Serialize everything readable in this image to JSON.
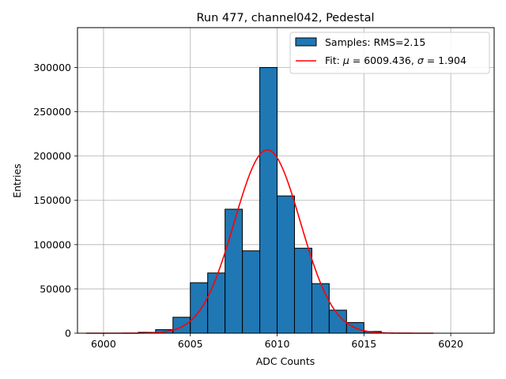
{
  "chart_data": {
    "type": "bar",
    "title": "Run 477, channel042, Pedestal",
    "xlabel": "ADC Counts",
    "ylabel": "Entries",
    "xlim": [
      5998.5,
      6022.5
    ],
    "ylim": [
      0,
      345000
    ],
    "grid": true,
    "legend_position": "top-right",
    "bar_color": "#1f77b4",
    "fit_color": "#ff0000",
    "x_ticks": [
      6000,
      6005,
      6010,
      6015,
      6020
    ],
    "y_ticks": [
      0,
      50000,
      100000,
      150000,
      200000,
      250000,
      300000
    ],
    "bin_width": 1,
    "bins": [
      {
        "left": 6002,
        "count": 1000
      },
      {
        "left": 6003,
        "count": 4000
      },
      {
        "left": 6004,
        "count": 18000
      },
      {
        "left": 6005,
        "count": 57000
      },
      {
        "left": 6006,
        "count": 68000
      },
      {
        "left": 6007,
        "count": 140000
      },
      {
        "left": 6008,
        "count": 93000
      },
      {
        "left": 6009,
        "count": 300000
      },
      {
        "left": 6010,
        "count": 155000
      },
      {
        "left": 6011,
        "count": 96000
      },
      {
        "left": 6012,
        "count": 56000
      },
      {
        "left": 6013,
        "count": 26000
      },
      {
        "left": 6014,
        "count": 12000
      },
      {
        "left": 6015,
        "count": 2000
      }
    ],
    "fit": {
      "mu": 6009.436,
      "sigma": 1.904,
      "amplitude": 207000,
      "x_range": [
        5999,
        6019
      ]
    },
    "legend": {
      "samples_label": "Samples: RMS=2.15",
      "fit_label_prefix": "Fit: ",
      "fit_mu_symbol": "μ",
      "fit_mu_text": " = 6009.436, ",
      "fit_sigma_symbol": "σ",
      "fit_sigma_text": " = 1.904"
    }
  }
}
